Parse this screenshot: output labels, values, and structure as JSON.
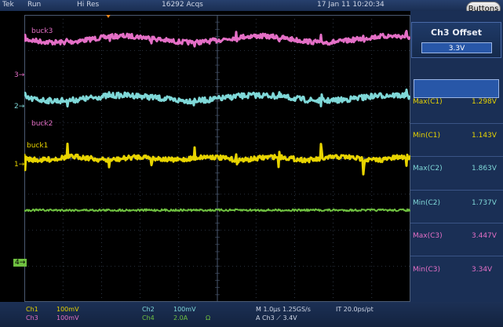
{
  "topbar": {
    "brand": "Tek",
    "run_state": "Run",
    "acq_mode": "Hi Res",
    "acquisitions": "16292 Acqs",
    "datetime": "17 Jan 11 10:20:34",
    "buttons_label": "Buttons"
  },
  "traces": [
    {
      "name": "buck3",
      "color": "#e46fc6"
    },
    {
      "name": "buck2",
      "color": "#7fd8d8"
    },
    {
      "name": "buck1",
      "color": "#e8d400"
    },
    {
      "name": "",
      "color": "#6fc040"
    }
  ],
  "markers": {
    "ch3": "3",
    "ch2": "2",
    "ch1": "1",
    "ch4": "4"
  },
  "right_panel": {
    "offset_title": "Ch3 Offset",
    "offset_value": "3.3V",
    "measurements": [
      {
        "label": "Max(C1)",
        "value": "1.298V",
        "color": "#e8d400"
      },
      {
        "label": "Min(C1)",
        "value": "1.143V",
        "color": "#e8d400"
      },
      {
        "label": "Max(C2)",
        "value": "1.863V",
        "color": "#7fd8d8"
      },
      {
        "label": "Min(C2)",
        "value": "1.737V",
        "color": "#7fd8d8"
      },
      {
        "label": "Max(C3)",
        "value": "3.447V",
        "color": "#e46fc6"
      },
      {
        "label": "Min(C3)",
        "value": "3.34V",
        "color": "#e46fc6"
      }
    ]
  },
  "bottom": {
    "ch1_name": "Ch1",
    "ch1_scale": "100mV",
    "ch3_name": "Ch3",
    "ch3_scale": "100mV",
    "ch2_name": "Ch2",
    "ch2_scale": "100mV",
    "ch4_name": "Ch4",
    "ch4_scale": "2.0A",
    "ch4_unit": "Ω",
    "timebase": "M 1.0µs 1.25GS/s",
    "trigger": "A  Ch3  ⟋  3.4V",
    "interp": "IT 20.0ps/pt"
  },
  "colors": {
    "grid": "#4b5a72",
    "panel": "#1a2f55"
  }
}
